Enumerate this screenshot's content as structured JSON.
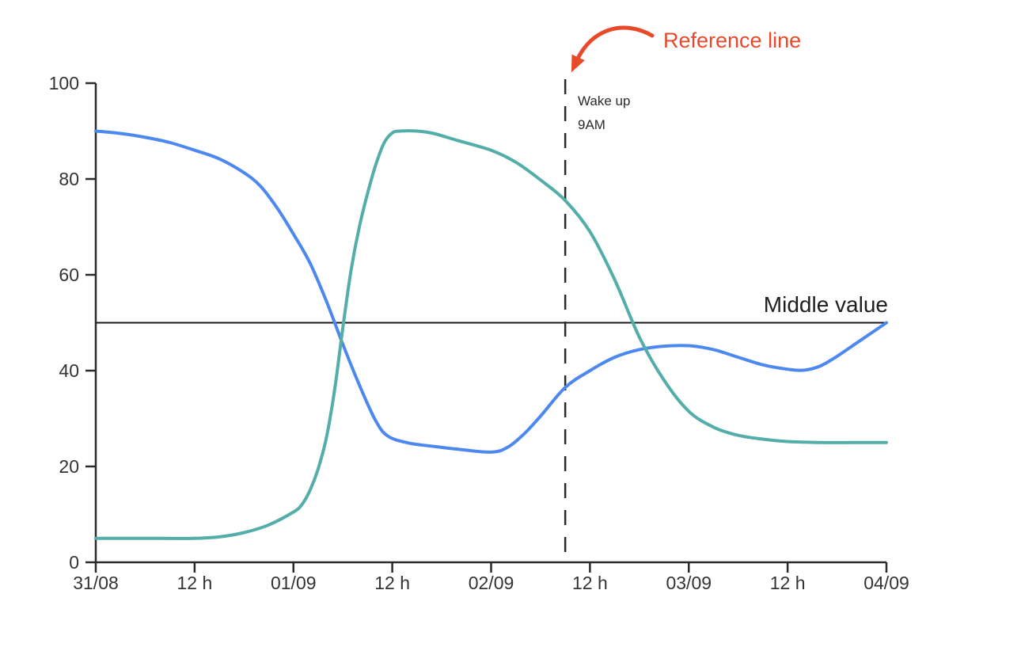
{
  "chart_data": {
    "type": "line",
    "title": "",
    "xlabel": "",
    "ylabel": "",
    "grid": false,
    "legend": "none",
    "background": "#ffffff",
    "axis_color": "#2b2b2b",
    "tick_text_color": "#333333",
    "ylim": [
      0,
      100
    ],
    "y_ticks": [
      0,
      20,
      40,
      60,
      80,
      100
    ],
    "x_domain_hours": [
      0,
      96
    ],
    "x_ticks": [
      {
        "hour": 0,
        "label": "31/08"
      },
      {
        "hour": 12,
        "label": "12 h"
      },
      {
        "hour": 24,
        "label": "01/09"
      },
      {
        "hour": 36,
        "label": "12 h"
      },
      {
        "hour": 48,
        "label": "02/09"
      },
      {
        "hour": 60,
        "label": "12 h"
      },
      {
        "hour": 72,
        "label": "03/09"
      },
      {
        "hour": 84,
        "label": "12 h"
      },
      {
        "hour": 96,
        "label": "04/09"
      }
    ],
    "series": [
      {
        "name": "blue-line",
        "color": "#4c88ef",
        "points_hour_value": [
          [
            0,
            90
          ],
          [
            3,
            89.5
          ],
          [
            6,
            88.7
          ],
          [
            9,
            87.6
          ],
          [
            12,
            86
          ],
          [
            15,
            84.2
          ],
          [
            18,
            81.3
          ],
          [
            20,
            78.5
          ],
          [
            22,
            74
          ],
          [
            24,
            68.5
          ],
          [
            26,
            62.5
          ],
          [
            28,
            54.5
          ],
          [
            30,
            45.5
          ],
          [
            32,
            37
          ],
          [
            34,
            29.5
          ],
          [
            35.5,
            26.3
          ],
          [
            38,
            24.9
          ],
          [
            41,
            24.2
          ],
          [
            44,
            23.6
          ],
          [
            48,
            23
          ],
          [
            50,
            24
          ],
          [
            52,
            26.8
          ],
          [
            54,
            30.5
          ],
          [
            57,
            36.5
          ],
          [
            60,
            40
          ],
          [
            63,
            42.8
          ],
          [
            66,
            44.4
          ],
          [
            69,
            45.1
          ],
          [
            72,
            45.2
          ],
          [
            75,
            44.4
          ],
          [
            78,
            42.8
          ],
          [
            81,
            41.2
          ],
          [
            84,
            40.3
          ],
          [
            86,
            40.1
          ],
          [
            88,
            41
          ],
          [
            90,
            43
          ],
          [
            93,
            46.5
          ],
          [
            96,
            50
          ]
        ]
      },
      {
        "name": "teal-line",
        "color": "#53ada9",
        "points_hour_value": [
          [
            0,
            5
          ],
          [
            4,
            5
          ],
          [
            8,
            5
          ],
          [
            12,
            5
          ],
          [
            15,
            5.3
          ],
          [
            18,
            6.2
          ],
          [
            21,
            7.8
          ],
          [
            24,
            10.5
          ],
          [
            25,
            12
          ],
          [
            26,
            15
          ],
          [
            27,
            19.5
          ],
          [
            28,
            26
          ],
          [
            29,
            36
          ],
          [
            30,
            49
          ],
          [
            31,
            61
          ],
          [
            32,
            70
          ],
          [
            33,
            77
          ],
          [
            34,
            83
          ],
          [
            35,
            87.5
          ],
          [
            36,
            89.6
          ],
          [
            37,
            90
          ],
          [
            39,
            90
          ],
          [
            41,
            89.5
          ],
          [
            44,
            88
          ],
          [
            48,
            86
          ],
          [
            51,
            83.5
          ],
          [
            54,
            79.8
          ],
          [
            57,
            75.5
          ],
          [
            60,
            69
          ],
          [
            63,
            59
          ],
          [
            66,
            47
          ],
          [
            69,
            38
          ],
          [
            72,
            31.5
          ],
          [
            75,
            28.2
          ],
          [
            78,
            26.5
          ],
          [
            81,
            25.7
          ],
          [
            84,
            25.2
          ],
          [
            88,
            25
          ],
          [
            92,
            25
          ],
          [
            96,
            25
          ]
        ]
      }
    ],
    "reference_line": {
      "hour": 57,
      "style": "dashed",
      "color": "#2b2b2b",
      "labels": [
        "Wake up",
        "9AM"
      ]
    },
    "middle_line": {
      "value": 50,
      "label": "Middle value",
      "color": "#1a1a1a"
    },
    "callout": {
      "label": "Reference line",
      "color": "#e8492b"
    }
  }
}
